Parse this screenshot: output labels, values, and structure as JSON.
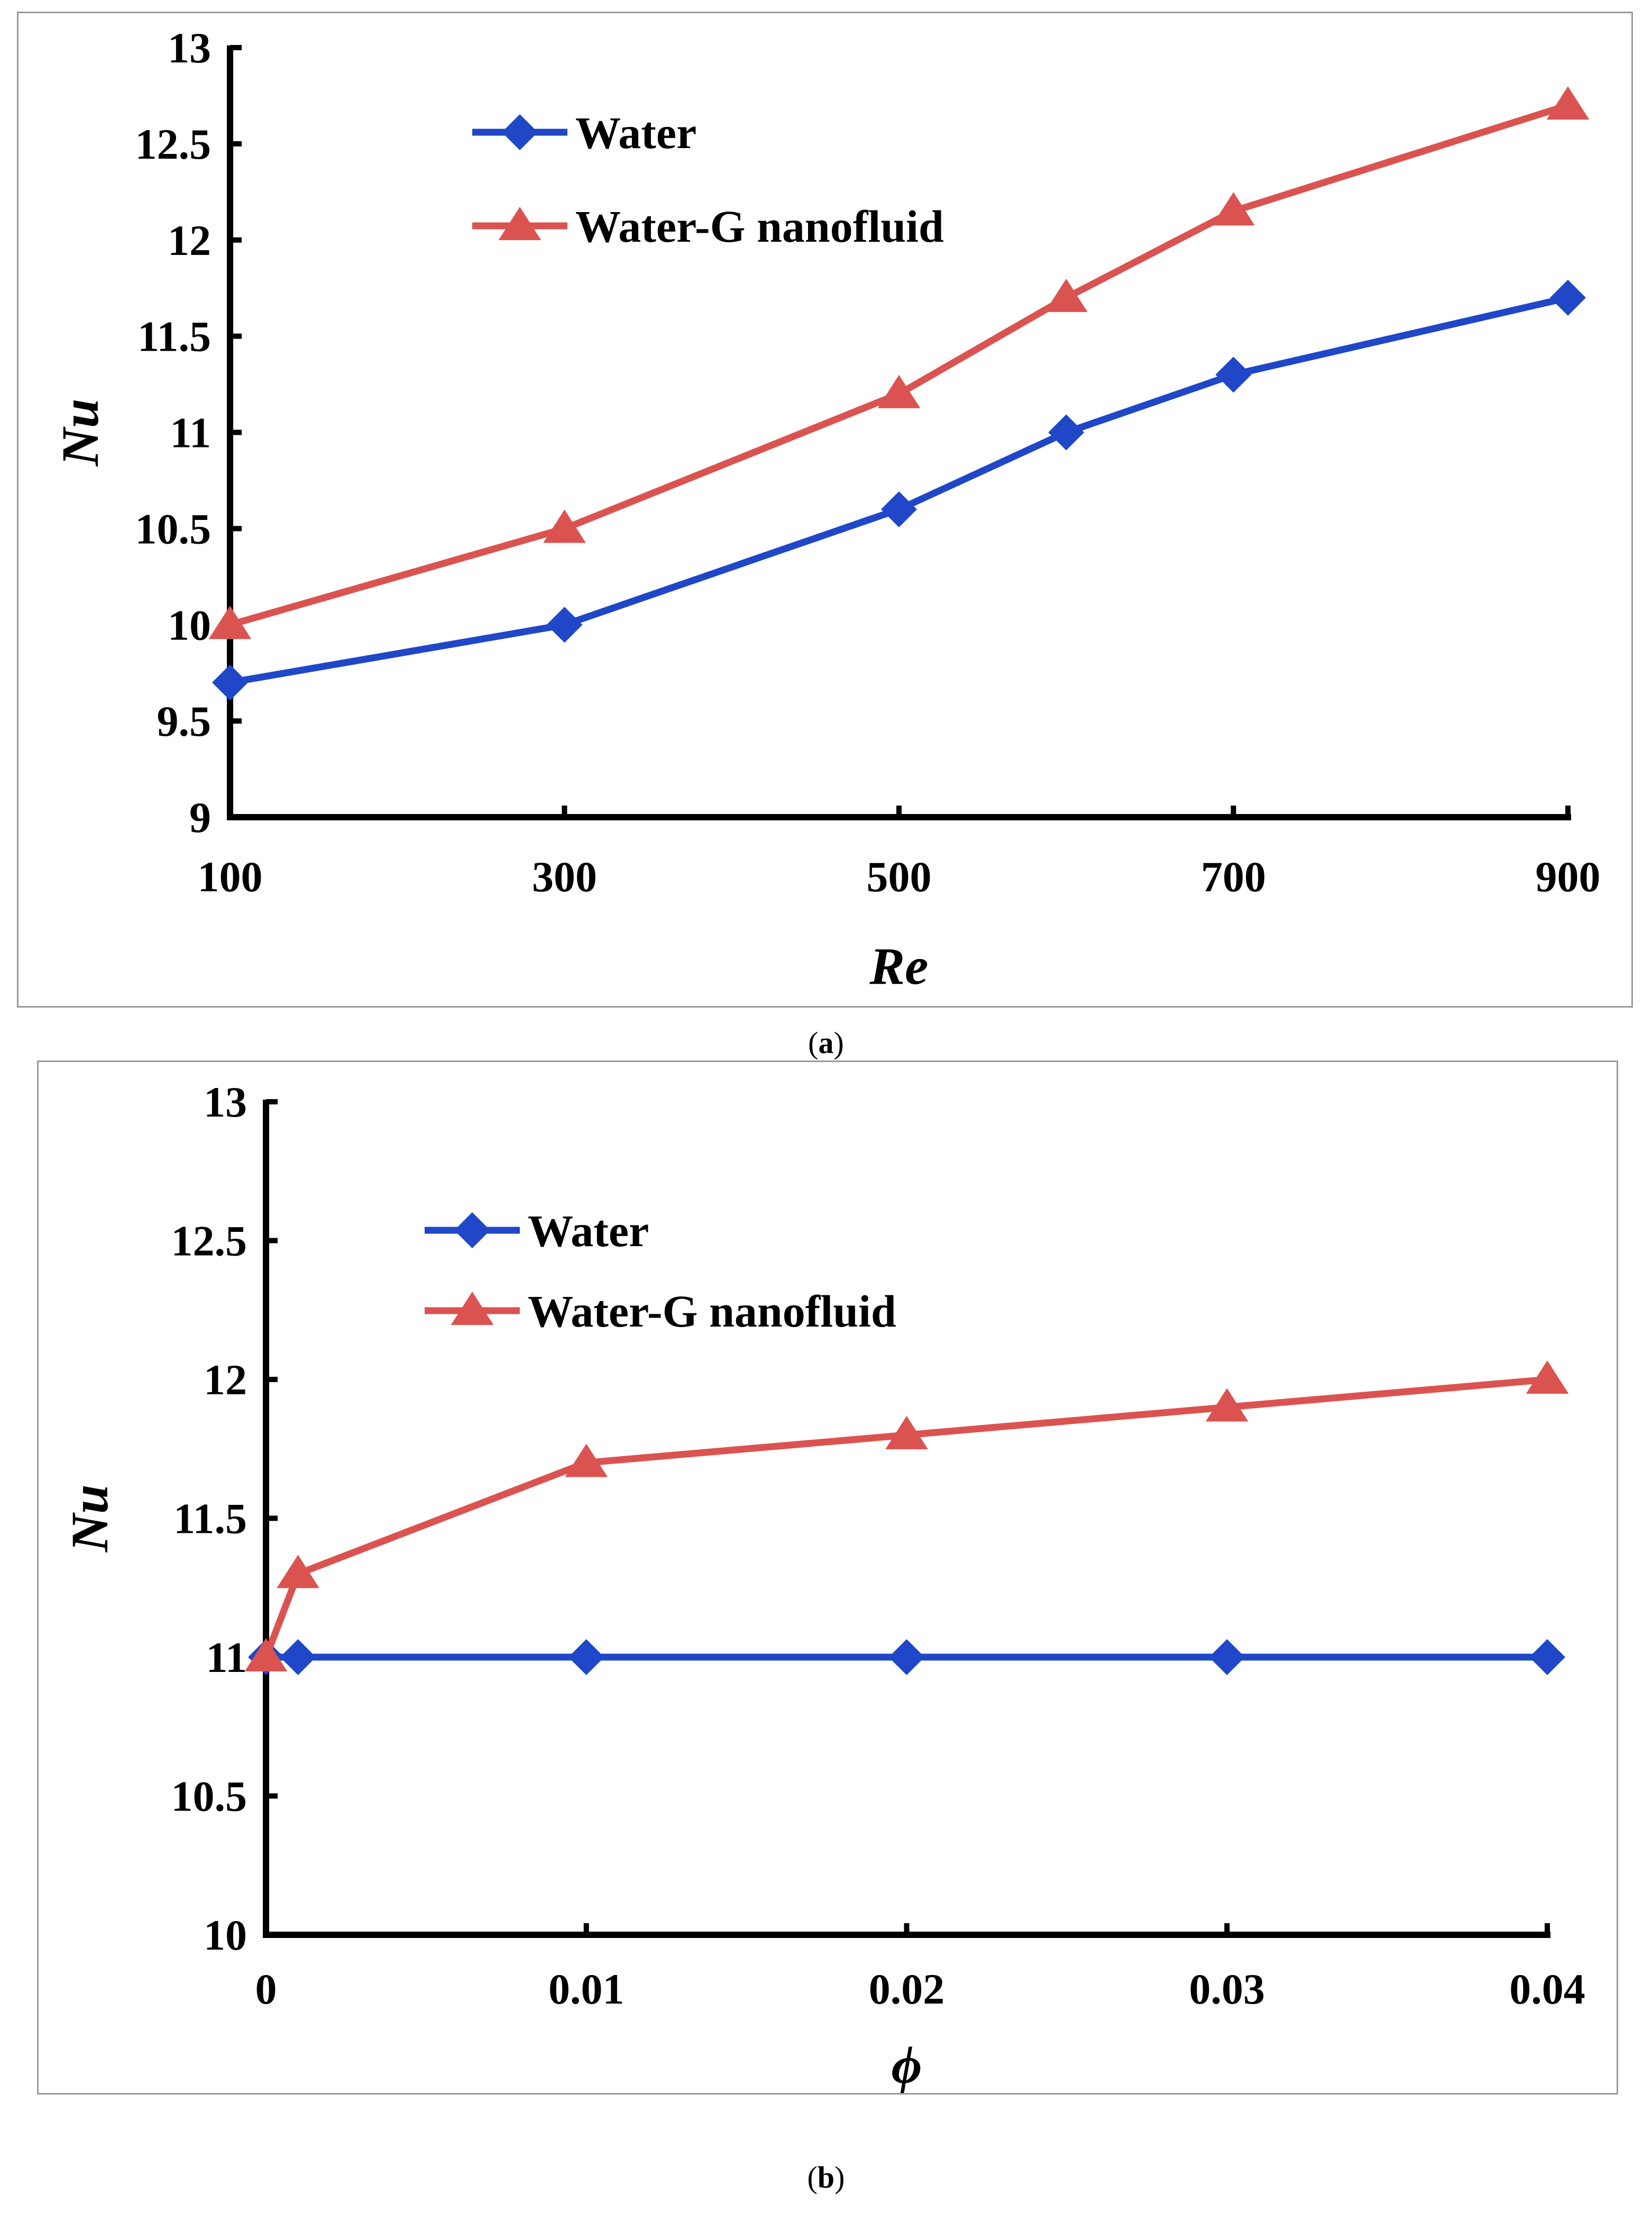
{
  "colors": {
    "water": "#1f47c8",
    "nanofluid": "#db5350",
    "axis": "#000000"
  },
  "chart_data": [
    {
      "type": "line",
      "caption_label": "a",
      "xlabel": "Re",
      "ylabel": "Nu",
      "x": [
        100,
        300,
        500,
        600,
        700,
        900
      ],
      "xticks": [
        "100",
        "300",
        "500",
        "700",
        "900"
      ],
      "xtick_values": [
        100,
        300,
        500,
        700,
        900
      ],
      "xlim": [
        100,
        900
      ],
      "ylim": [
        9,
        13
      ],
      "yticks": [
        "9",
        "9.5",
        "10",
        "10.5",
        "11",
        "11.5",
        "12",
        "12.5",
        "13"
      ],
      "ytick_values": [
        9,
        9.5,
        10,
        10.5,
        11,
        11.5,
        12,
        12.5,
        13
      ],
      "grid": false,
      "legend_position": "top-left",
      "series": [
        {
          "name": "Water",
          "marker": "diamond",
          "values": [
            9.7,
            10.0,
            10.6,
            11.0,
            11.3,
            11.7
          ]
        },
        {
          "name": "Water-G nanofluid",
          "marker": "triangle",
          "values": [
            10.0,
            10.5,
            11.2,
            11.7,
            12.15,
            12.7
          ]
        }
      ]
    },
    {
      "type": "line",
      "caption_label": "b",
      "xlabel": "ϕ",
      "ylabel": "Nu",
      "x": [
        0,
        0.001,
        0.01,
        0.02,
        0.03,
        0.04
      ],
      "xticks": [
        "0",
        "0.01",
        "0.02",
        "0.03",
        "0.04"
      ],
      "xtick_values": [
        0,
        0.01,
        0.02,
        0.03,
        0.04
      ],
      "xlim": [
        0,
        0.04
      ],
      "ylim": [
        10,
        13
      ],
      "yticks": [
        "10",
        "10.5",
        "11",
        "11.5",
        "12",
        "12.5",
        "13"
      ],
      "ytick_values": [
        10,
        10.5,
        11,
        11.5,
        12,
        12.5,
        13
      ],
      "grid": false,
      "legend_position": "top-left",
      "series": [
        {
          "name": "Water",
          "marker": "diamond",
          "values": [
            11.0,
            11.0,
            11.0,
            11.0,
            11.0,
            11.0
          ]
        },
        {
          "name": "Water-G nanofluid",
          "marker": "triangle",
          "values": [
            11.0,
            11.3,
            11.7,
            11.8,
            11.9,
            12.0
          ]
        }
      ]
    }
  ]
}
